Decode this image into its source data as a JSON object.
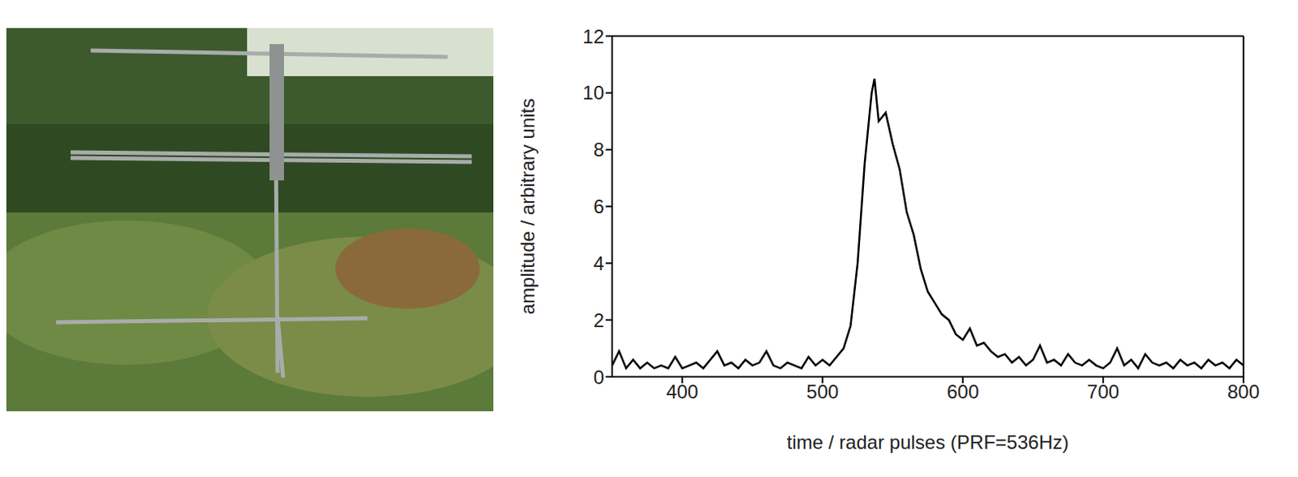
{
  "chart_data": {
    "type": "line",
    "x_label": "time / radar pulses (PRF=536Hz)",
    "y_label": "amplitude / arbitrary units",
    "xlim": [
      350,
      800
    ],
    "xticks": [
      400,
      500,
      600,
      700,
      800
    ],
    "ylim": [
      0,
      12
    ],
    "yticks": [
      0,
      2,
      4,
      6,
      8,
      10,
      12
    ],
    "color": "#000000",
    "grid": false,
    "x": [
      350,
      355,
      360,
      365,
      370,
      375,
      380,
      385,
      390,
      395,
      400,
      405,
      410,
      415,
      420,
      425,
      430,
      435,
      440,
      445,
      450,
      455,
      460,
      465,
      470,
      475,
      480,
      485,
      490,
      495,
      500,
      505,
      510,
      515,
      520,
      525,
      530,
      535,
      537,
      540,
      545,
      550,
      555,
      560,
      565,
      570,
      575,
      580,
      585,
      590,
      595,
      600,
      605,
      610,
      615,
      620,
      625,
      630,
      635,
      640,
      645,
      650,
      655,
      660,
      665,
      670,
      675,
      680,
      685,
      690,
      695,
      700,
      705,
      710,
      715,
      720,
      725,
      730,
      735,
      740,
      745,
      750,
      755,
      760,
      765,
      770,
      775,
      780,
      785,
      790,
      795,
      800
    ],
    "values": [
      0.4,
      0.9,
      0.3,
      0.6,
      0.3,
      0.5,
      0.3,
      0.4,
      0.3,
      0.7,
      0.3,
      0.4,
      0.5,
      0.3,
      0.6,
      0.9,
      0.4,
      0.5,
      0.3,
      0.6,
      0.4,
      0.5,
      0.9,
      0.4,
      0.3,
      0.5,
      0.4,
      0.3,
      0.7,
      0.4,
      0.6,
      0.4,
      0.7,
      1.0,
      1.8,
      4.0,
      7.5,
      10.0,
      10.5,
      9.0,
      9.3,
      8.2,
      7.3,
      5.8,
      5.0,
      3.8,
      3.0,
      2.6,
      2.2,
      2.0,
      1.5,
      1.3,
      1.7,
      1.1,
      1.2,
      0.9,
      0.7,
      0.8,
      0.5,
      0.7,
      0.4,
      0.6,
      1.1,
      0.5,
      0.6,
      0.4,
      0.8,
      0.5,
      0.4,
      0.6,
      0.4,
      0.3,
      0.5,
      1.0,
      0.4,
      0.6,
      0.3,
      0.8,
      0.5,
      0.4,
      0.5,
      0.3,
      0.6,
      0.4,
      0.5,
      0.3,
      0.6,
      0.4,
      0.5,
      0.3,
      0.6,
      0.4
    ]
  }
}
